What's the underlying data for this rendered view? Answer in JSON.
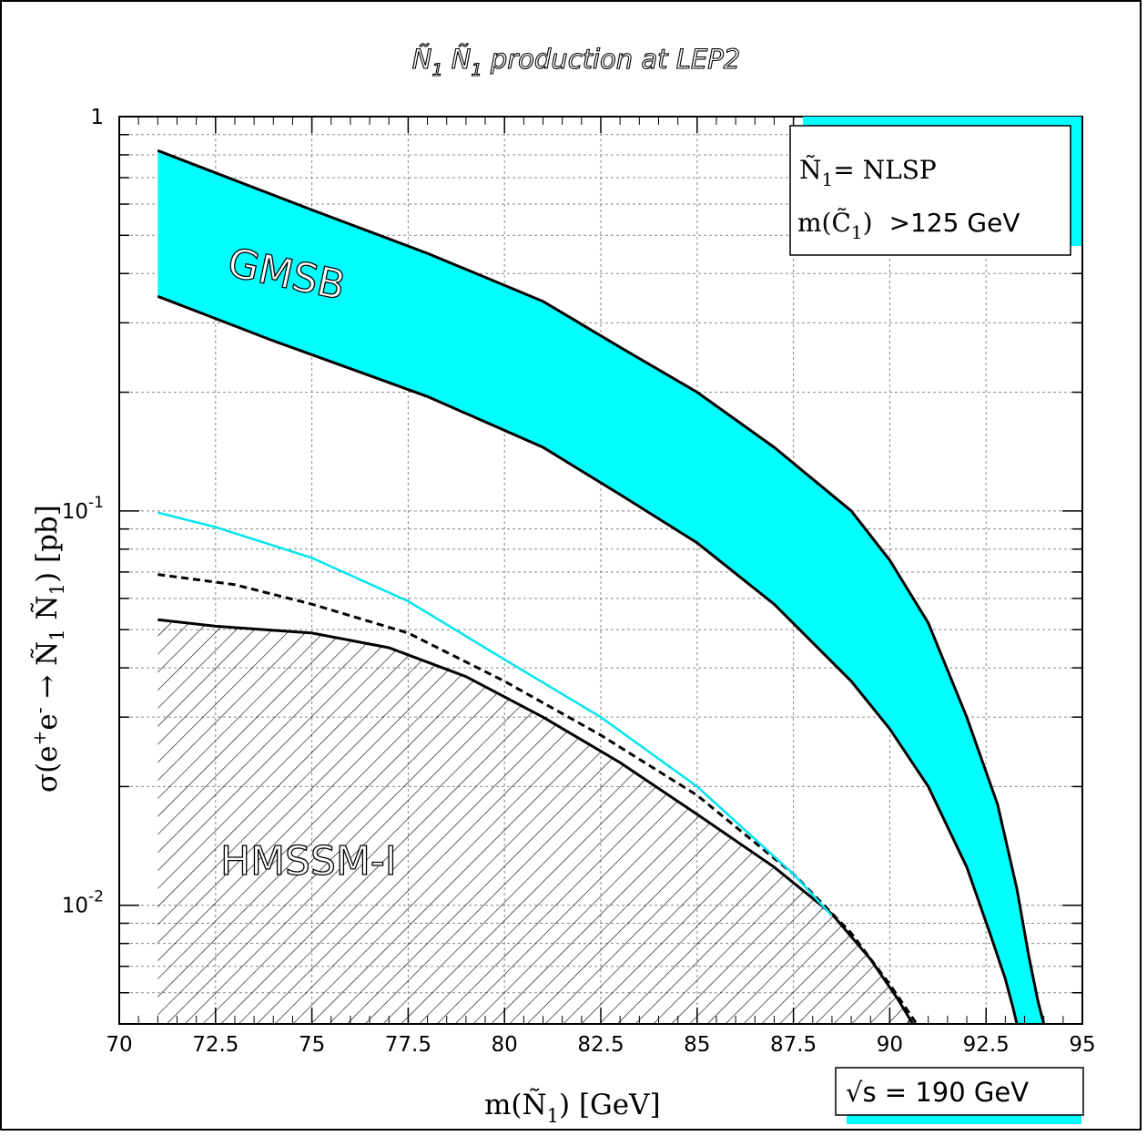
{
  "colors": {
    "band": "#00ffff",
    "band_edge": "#000000",
    "cyan_line": "#00e5ee",
    "dashed_line": "#000000",
    "hatch": "#000000"
  },
  "title": {
    "prefix": "Ñ",
    "sub1": "1",
    "mid": " Ñ",
    "sub2": "1",
    "rest": " production at LEP2"
  },
  "legend": {
    "line1_symbol": "Ñ",
    "line1_sub": "1",
    "line1_rest": "= NLSP",
    "line2_prefix": "m(C̃",
    "line2_sub": "1",
    "line2_paren": ")",
    "line2_value": ">125 GeV"
  },
  "energy_label": "√s = 190 GeV",
  "region_labels": {
    "gmsb": "GMSB",
    "hmssm": "HMSSM-I"
  },
  "axis_titles": {
    "x_main": "m(Ñ",
    "x_sub": "1",
    "x_end": ") [GeV]",
    "y_sigma": "σ(e",
    "y_plus": "+",
    "y_e": "e",
    "y_minus": "-",
    "y_arrow": " → Ñ",
    "y_sub1": "1",
    "y_space": " Ñ",
    "y_sub2": "1",
    "y_end": ") [pb]"
  },
  "y_tick_labels": [
    {
      "value": 1,
      "base": "1",
      "exp": ""
    },
    {
      "value": 0.1,
      "base": "10",
      "exp": "-1"
    },
    {
      "value": 0.01,
      "base": "10",
      "exp": "-2"
    }
  ],
  "chart_data": {
    "type": "line",
    "x_ticks": [
      "70",
      "72.5",
      "75",
      "77.5",
      "80",
      "82.5",
      "85",
      "87.5",
      "90",
      "92.5",
      "95"
    ],
    "xlim": [
      70,
      95
    ],
    "ylim": [
      0.005,
      1
    ],
    "y_scale": "log",
    "grid": true,
    "series": [
      {
        "name": "GMSB",
        "kind": "band",
        "upper": {
          "x": [
            71,
            75,
            78,
            81,
            83,
            85,
            87,
            89,
            90,
            91,
            92,
            92.8,
            93.3,
            93.6,
            93.85,
            94.0
          ],
          "y": [
            0.82,
            0.58,
            0.45,
            0.34,
            0.26,
            0.2,
            0.145,
            0.1,
            0.075,
            0.052,
            0.03,
            0.018,
            0.011,
            0.0075,
            0.0057,
            0.005
          ]
        },
        "lower": {
          "x": [
            71,
            74,
            78,
            81,
            83,
            85,
            87,
            89,
            90,
            91,
            92,
            92.6,
            93.0,
            93.2,
            93.3
          ],
          "y": [
            0.35,
            0.27,
            0.195,
            0.145,
            0.11,
            0.083,
            0.058,
            0.037,
            0.028,
            0.02,
            0.0125,
            0.0085,
            0.0065,
            0.0055,
            0.005
          ]
        }
      },
      {
        "name": "HMSSM-I",
        "kind": "hatched",
        "x": [
          71,
          72.5,
          75,
          77,
          79,
          81,
          83,
          85,
          87,
          88.5,
          89.5,
          90.2,
          90.6
        ],
        "y": [
          0.053,
          0.051,
          0.049,
          0.045,
          0.038,
          0.03,
          0.023,
          0.017,
          0.0125,
          0.0095,
          0.0073,
          0.0058,
          0.005
        ]
      },
      {
        "kind": "dashed",
        "x": [
          71,
          73,
          75,
          77.5,
          80,
          82.5,
          85,
          87.5,
          89,
          90,
          90.7
        ],
        "y": [
          0.069,
          0.065,
          0.058,
          0.049,
          0.037,
          0.027,
          0.019,
          0.012,
          0.0085,
          0.0063,
          0.005
        ]
      },
      {
        "kind": "cyan",
        "x": [
          71,
          72.5,
          75,
          77.5,
          80,
          82.5,
          85,
          87.5,
          88.5
        ],
        "y": [
          0.099,
          0.091,
          0.076,
          0.059,
          0.042,
          0.03,
          0.02,
          0.012,
          0.0094
        ]
      }
    ]
  }
}
